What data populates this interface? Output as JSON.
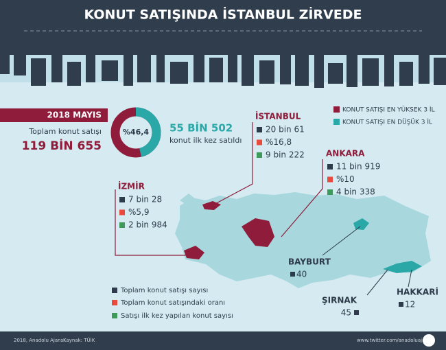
{
  "header": {
    "title": "KONUT SATIŞINDA İSTANBUL ZİRVEDE"
  },
  "summary": {
    "period": "2018 MAYIS",
    "total_label": "Toplam konut satışı",
    "total_value": "119 BİN 655",
    "donut": {
      "value": 46.4,
      "label": "%46,4"
    },
    "first_value": "55 BİN 502",
    "first_label": "konut ilk kez satıldı"
  },
  "legend": [
    "KONUT SATIŞI EN YÜKSEK 3 İL",
    "KONUT SATIŞI EN DÜŞÜK 3 İL"
  ],
  "top_cities": [
    {
      "name": "İSTANBUL",
      "total": "20 bin 61",
      "share": "%16,8",
      "first": "9 bin 222"
    },
    {
      "name": "ANKARA",
      "total": "11 bin 919",
      "share": "%10",
      "first": "4 bin 338"
    },
    {
      "name": "İZMİR",
      "total": "7 bin 28",
      "share": "%5,9",
      "first": "2 bin 984"
    }
  ],
  "bottom_cities": [
    {
      "name": "BAYBURT",
      "total": "40"
    },
    {
      "name": "ŞIRNAK",
      "total": "45"
    },
    {
      "name": "HAKKARİ",
      "total": "12"
    }
  ],
  "key": [
    "Toplam konut satışı sayısı",
    "Toplam konut satışındaki oranı",
    "Satışı ilk kez yapılan konut sayısı"
  ],
  "footer": {
    "credit": "2018, Anadolu Ajansı",
    "source": "Kaynak: TÜİK",
    "url": "www.twitter.com/anadoluajansi"
  }
}
